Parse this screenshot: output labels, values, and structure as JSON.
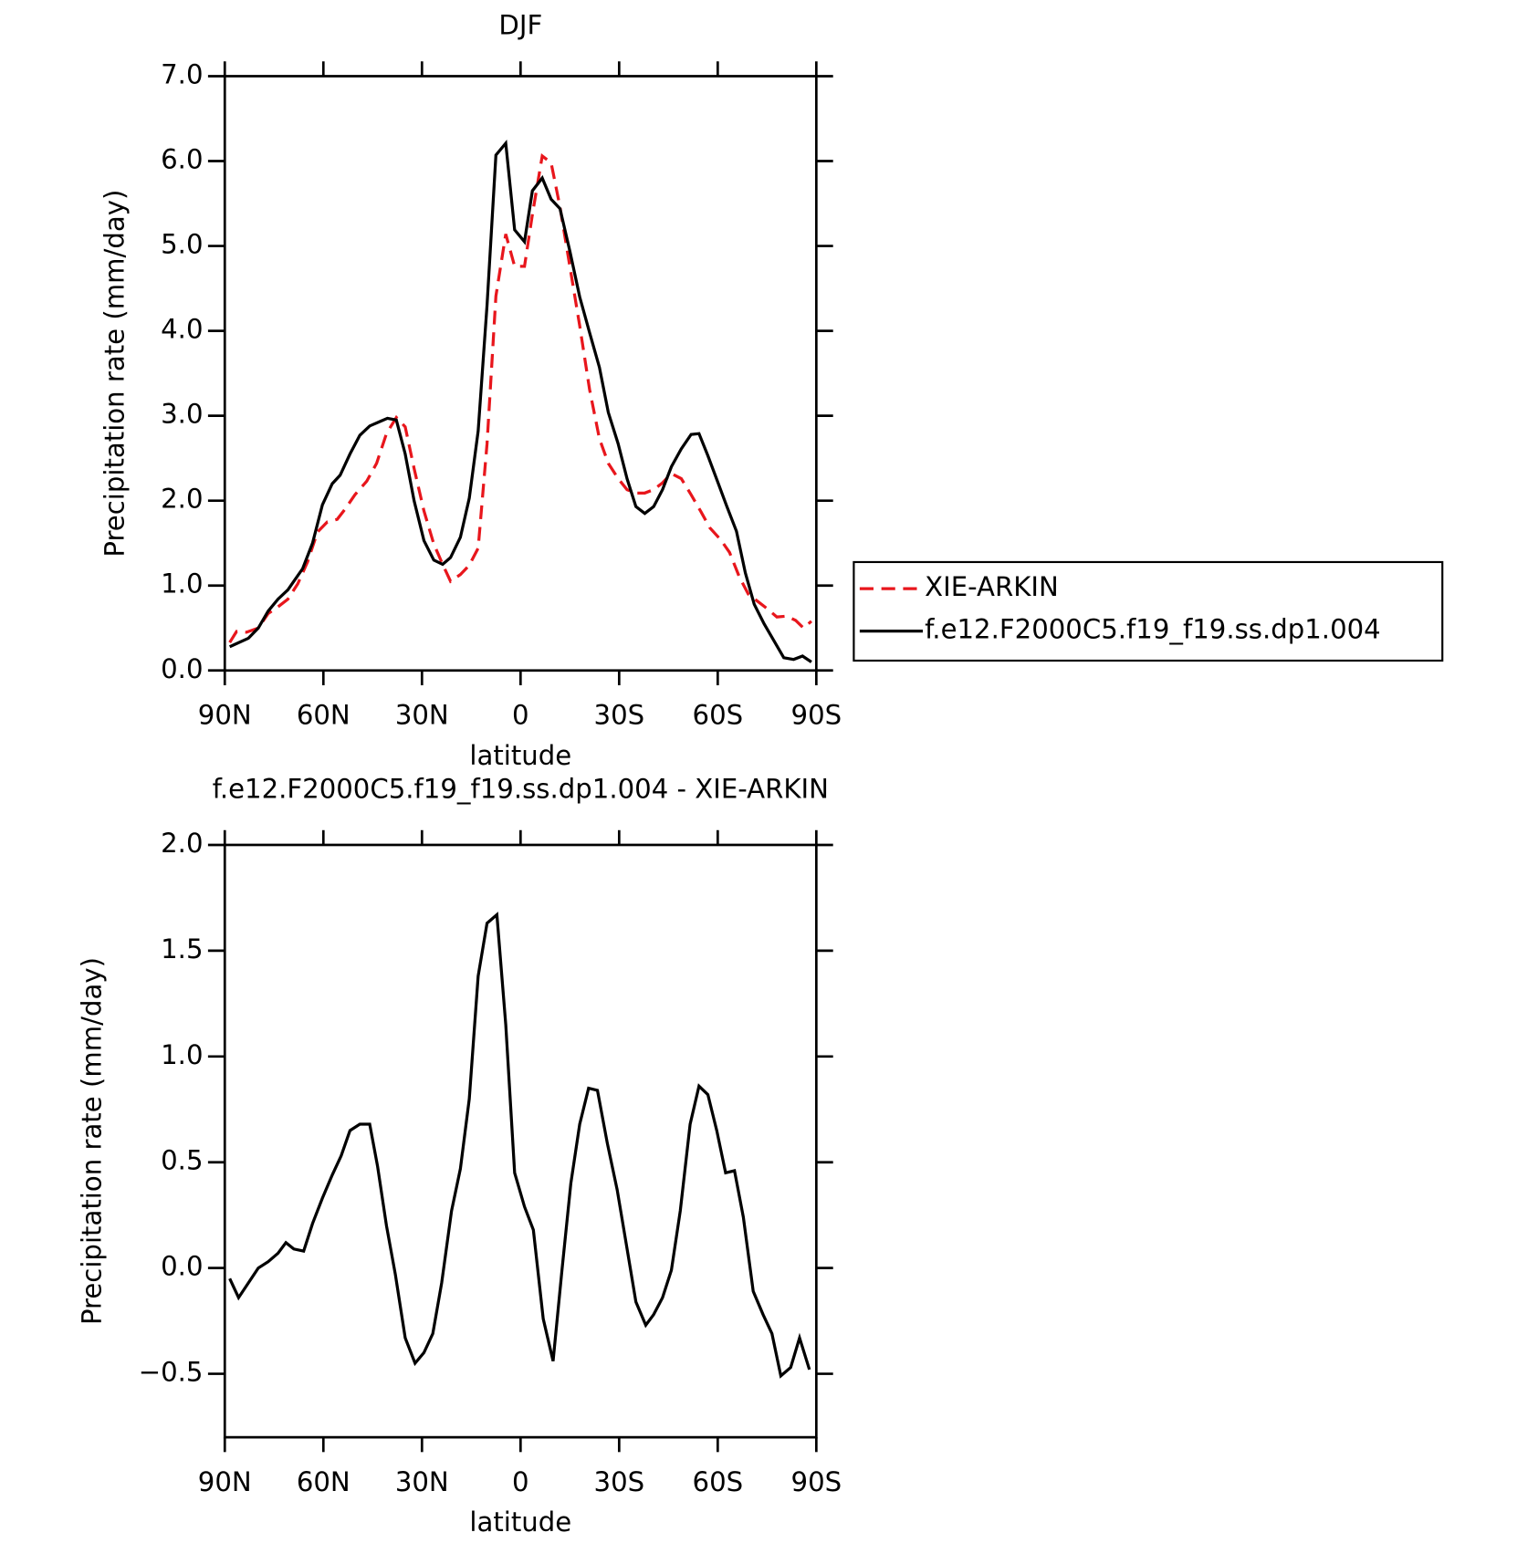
{
  "chart_data": [
    {
      "type": "line",
      "title": "DJF",
      "xlabel": "latitude",
      "ylabel": "Precipitation rate (mm/day)",
      "xlim": [
        90,
        -90
      ],
      "xticks": [
        {
          "value": 90,
          "label": "90N"
        },
        {
          "value": 60,
          "label": "60N"
        },
        {
          "value": 30,
          "label": "30N"
        },
        0,
        {
          "value": -30,
          "label": "30S"
        },
        {
          "value": -60,
          "label": "60S"
        },
        {
          "value": -90,
          "label": "90S"
        }
      ],
      "ylim": [
        0,
        7
      ],
      "yticks": [
        {
          "value": 0,
          "label": "0.0"
        },
        {
          "value": 1,
          "label": "1.0"
        },
        {
          "value": 2,
          "label": "2.0"
        },
        {
          "value": 3,
          "label": "3.0"
        },
        {
          "value": 4,
          "label": "4.0"
        },
        {
          "value": 5,
          "label": "5.0"
        },
        {
          "value": 6,
          "label": "6.0"
        },
        {
          "value": 7,
          "label": "7.0"
        }
      ],
      "legend": "right",
      "series": [
        {
          "name": "XIE-ARKIN",
          "color": "#e8161c",
          "dashed": true,
          "x": [
            88.5,
            86.4,
            83.4,
            79.8,
            76.8,
            73.8,
            70.8,
            67.8,
            64.8,
            61.8,
            58.8,
            55.8,
            53.4,
            50.4,
            46.8,
            43.8,
            40.8,
            37.8,
            35.1,
            32.4,
            29.4,
            26.4,
            23.7,
            21.3,
            18.3,
            15.6,
            12.9,
            10.2,
            7.5,
            4.5,
            1.8,
            -1.2,
            -3.6,
            -6.6,
            -9.3,
            -12,
            -15,
            -18,
            -21,
            -24,
            -26.7,
            -29.7,
            -32.4,
            -35.1,
            -37.8,
            -40.5,
            -43.2,
            -45.9,
            -48.9,
            -51.9,
            -54.9,
            -57.6,
            -60.9,
            -63.6,
            -66.6,
            -69.3,
            -72.3,
            -75.3,
            -78,
            -81,
            -83.7,
            -86.1,
            -88.5
          ],
          "values": [
            0.33,
            0.46,
            0.45,
            0.5,
            0.67,
            0.75,
            0.84,
            1.02,
            1.28,
            1.63,
            1.75,
            1.78,
            1.9,
            2.07,
            2.23,
            2.44,
            2.79,
            2.98,
            2.87,
            2.38,
            1.88,
            1.49,
            1.25,
            1.05,
            1.13,
            1.24,
            1.44,
            2.67,
            4.41,
            5.14,
            4.76,
            4.76,
            5.37,
            6.06,
            5.98,
            5.46,
            4.76,
            4.06,
            3.31,
            2.73,
            2.44,
            2.26,
            2.13,
            2.09,
            2.09,
            2.13,
            2.21,
            2.32,
            2.26,
            2.07,
            1.87,
            1.68,
            1.54,
            1.39,
            1.1,
            0.9,
            0.81,
            0.72,
            0.63,
            0.64,
            0.59,
            0.5,
            0.58
          ]
        },
        {
          "name": "f.e12.F2000C5.f19_f19.ss.dp1.004",
          "color": "#000000",
          "dashed": false,
          "x": [
            88.5,
            82.8,
            79.8,
            76.8,
            73.8,
            70.8,
            66.3,
            63.3,
            60.3,
            57.3,
            54.9,
            51.9,
            48.9,
            45.9,
            42.9,
            40.5,
            37.8,
            35.1,
            32.4,
            29.4,
            26.4,
            23.7,
            21.3,
            18.3,
            15.6,
            12.9,
            10.2,
            7.5,
            4.5,
            1.8,
            -1.2,
            -3.6,
            -6.6,
            -9.3,
            -12,
            -15,
            -18,
            -21,
            -24,
            -26.7,
            -29.7,
            -32.4,
            -35.1,
            -37.8,
            -40.5,
            -43.2,
            -45.9,
            -48.9,
            -51.9,
            -54.3,
            -57,
            -60,
            -62.7,
            -65.7,
            -68.4,
            -71.1,
            -74.1,
            -77.1,
            -80.1,
            -83.1,
            -85.8,
            -88.5
          ],
          "values": [
            0.28,
            0.38,
            0.5,
            0.7,
            0.84,
            0.95,
            1.2,
            1.5,
            1.95,
            2.2,
            2.3,
            2.55,
            2.77,
            2.88,
            2.93,
            2.97,
            2.95,
            2.55,
            2.0,
            1.53,
            1.3,
            1.25,
            1.33,
            1.57,
            2.03,
            2.82,
            4.3,
            6.07,
            6.21,
            5.19,
            5.05,
            5.65,
            5.8,
            5.55,
            5.44,
            4.94,
            4.4,
            3.98,
            3.57,
            3.04,
            2.67,
            2.26,
            1.93,
            1.85,
            1.93,
            2.13,
            2.4,
            2.61,
            2.78,
            2.79,
            2.53,
            2.22,
            1.94,
            1.64,
            1.15,
            0.78,
            0.55,
            0.35,
            0.15,
            0.13,
            0.17,
            0.1
          ]
        }
      ]
    },
    {
      "type": "line",
      "title": "f.e12.F2000C5.f19_f19.ss.dp1.004 - XIE-ARKIN",
      "xlabel": "latitude",
      "ylabel": "Precipitation rate (mm/day)",
      "xlim": [
        90,
        -90
      ],
      "xticks": [
        {
          "value": 90,
          "label": "90N"
        },
        {
          "value": 60,
          "label": "60N"
        },
        {
          "value": 30,
          "label": "30N"
        },
        0,
        {
          "value": -30,
          "label": "30S"
        },
        {
          "value": -60,
          "label": "60S"
        },
        {
          "value": -90,
          "label": "90S"
        }
      ],
      "ylim": [
        -0.8,
        2
      ],
      "yticks": [
        {
          "value": -0.5,
          "label": "−0.5"
        },
        {
          "value": 0,
          "label": "0.0"
        },
        0.5,
        {
          "value": 1,
          "label": "1.0"
        },
        1.5,
        {
          "value": 2,
          "label": "2.0"
        }
      ],
      "series": [
        {
          "color": "#000000",
          "dashed": false,
          "x": [
            88.5,
            85.8,
            82.8,
            79.8,
            76.8,
            73.8,
            71.4,
            69,
            66,
            63.3,
            60.3,
            57.3,
            54.6,
            51.9,
            48.9,
            45.9,
            43.5,
            40.8,
            38.1,
            35.1,
            32.1,
            29.4,
            26.7,
            24,
            21,
            18.3,
            15.6,
            12.9,
            10.2,
            7.2,
            4.5,
            1.8,
            -1.2,
            -3.9,
            -6.9,
            -9.9,
            -12.6,
            -15.3,
            -18,
            -20.7,
            -23.4,
            -26.4,
            -29.4,
            -32.1,
            -35.1,
            -38.1,
            -40.5,
            -43.2,
            -45.9,
            -48.6,
            -51.6,
            -54.3,
            -57,
            -59.7,
            -62.4,
            -65.1,
            -67.8,
            -70.8,
            -73.8,
            -76.5,
            -79.2,
            -82.2,
            -84.9,
            -87.9
          ],
          "values": [
            -0.05,
            -0.14,
            -0.07,
            0,
            0.03,
            0.07,
            0.12,
            0.09,
            0.08,
            0.21,
            0.33,
            0.44,
            0.53,
            0.65,
            0.68,
            0.68,
            0.48,
            0.2,
            -0.03,
            -0.33,
            -0.45,
            -0.4,
            -0.31,
            -0.07,
            0.27,
            0.47,
            0.8,
            1.38,
            1.63,
            1.67,
            1.15,
            0.45,
            0.29,
            0.18,
            -0.24,
            -0.44,
            -0.01,
            0.4,
            0.68,
            0.85,
            0.84,
            0.59,
            0.37,
            0.12,
            -0.16,
            -0.27,
            -0.22,
            -0.14,
            -0.01,
            0.27,
            0.68,
            0.86,
            0.82,
            0.65,
            0.45,
            0.46,
            0.24,
            -0.11,
            -0.22,
            -0.31,
            -0.51,
            -0.47,
            -0.33,
            -0.48
          ]
        }
      ]
    }
  ]
}
